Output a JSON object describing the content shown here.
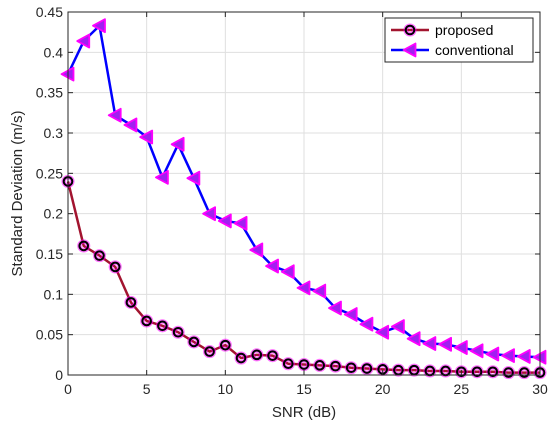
{
  "chart_data": {
    "type": "line",
    "title": "",
    "xlabel": "SNR (dB)",
    "ylabel": "Standard Deviation (m/s)",
    "xlim": [
      0,
      30
    ],
    "ylim": [
      0,
      0.45
    ],
    "xticks": [
      0,
      5,
      10,
      15,
      20,
      25,
      30
    ],
    "yticks": [
      0,
      0.05,
      0.1,
      0.15,
      0.2,
      0.25,
      0.3,
      0.35,
      0.4,
      0.45
    ],
    "xtick_labels": [
      "0",
      "5",
      "10",
      "15",
      "20",
      "25",
      "30"
    ],
    "ytick_labels": [
      "0",
      "0.05",
      "0.1",
      "0.15",
      "0.2",
      "0.25",
      "0.3",
      "0.35",
      "0.4",
      "0.45"
    ],
    "grid": true,
    "legend_position": "top-right",
    "x": [
      0,
      1,
      2,
      3,
      4,
      5,
      6,
      7,
      8,
      9,
      10,
      11,
      12,
      13,
      14,
      15,
      16,
      17,
      18,
      19,
      20,
      21,
      22,
      23,
      24,
      25,
      26,
      27,
      28,
      29,
      30
    ],
    "series": [
      {
        "name": "proposed",
        "line_color": "#A2142F",
        "marker": "circle",
        "marker_edge_color": "#000000",
        "marker_face_color": "#FF00FF",
        "values": [
          0.24,
          0.16,
          0.148,
          0.134,
          0.09,
          0.067,
          0.061,
          0.053,
          0.041,
          0.029,
          0.037,
          0.021,
          0.025,
          0.024,
          0.014,
          0.013,
          0.012,
          0.011,
          0.009,
          0.008,
          0.007,
          0.006,
          0.006,
          0.005,
          0.005,
          0.004,
          0.004,
          0.004,
          0.003,
          0.003,
          0.003
        ]
      },
      {
        "name": "conventional",
        "line_color": "#0000FF",
        "marker": "triangle-left",
        "marker_edge_color": "#FF00FF",
        "marker_face_color": "#A020F0",
        "values": [
          0.373,
          0.414,
          0.433,
          0.322,
          0.31,
          0.295,
          0.245,
          0.286,
          0.244,
          0.2,
          0.191,
          0.188,
          0.155,
          0.135,
          0.128,
          0.108,
          0.104,
          0.083,
          0.075,
          0.063,
          0.053,
          0.06,
          0.045,
          0.039,
          0.038,
          0.034,
          0.03,
          0.026,
          0.024,
          0.023,
          0.022
        ]
      }
    ]
  }
}
